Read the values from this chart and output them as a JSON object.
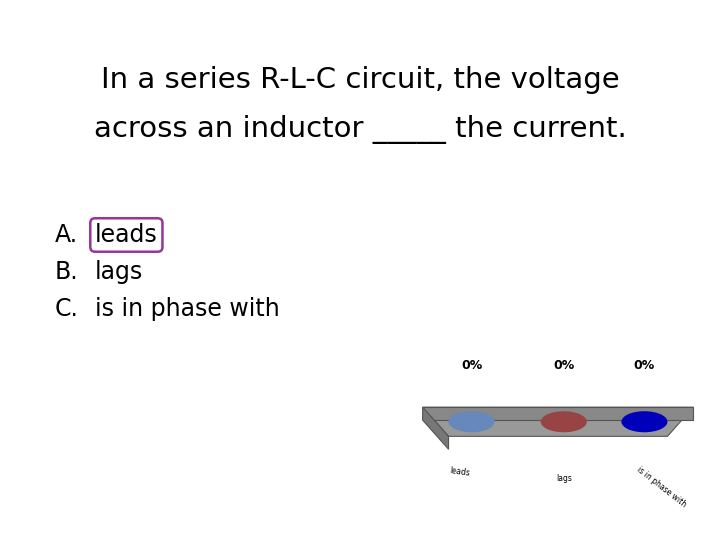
{
  "title_line1": "In a series R-L-C circuit, the voltage",
  "title_line2": "across an inductor _____ the current.",
  "options": [
    {
      "label": "A.",
      "text": "leads",
      "boxed": true
    },
    {
      "label": "B.",
      "text": "lags",
      "boxed": false
    },
    {
      "label": "C.",
      "text": "is in phase with",
      "boxed": false
    }
  ],
  "poll_percentages": [
    "0%",
    "0%",
    "0%"
  ],
  "poll_labels": [
    "leads",
    "lags",
    "is in phase with"
  ],
  "poll_dot_colors": [
    "#6688bb",
    "#994444",
    "#0000bb"
  ],
  "bg_color": "#ffffff",
  "text_color": "#000000",
  "box_color": "#993399",
  "bar_top_color": "#999999",
  "bar_left_color": "#777777",
  "bar_front_color": "#888888"
}
